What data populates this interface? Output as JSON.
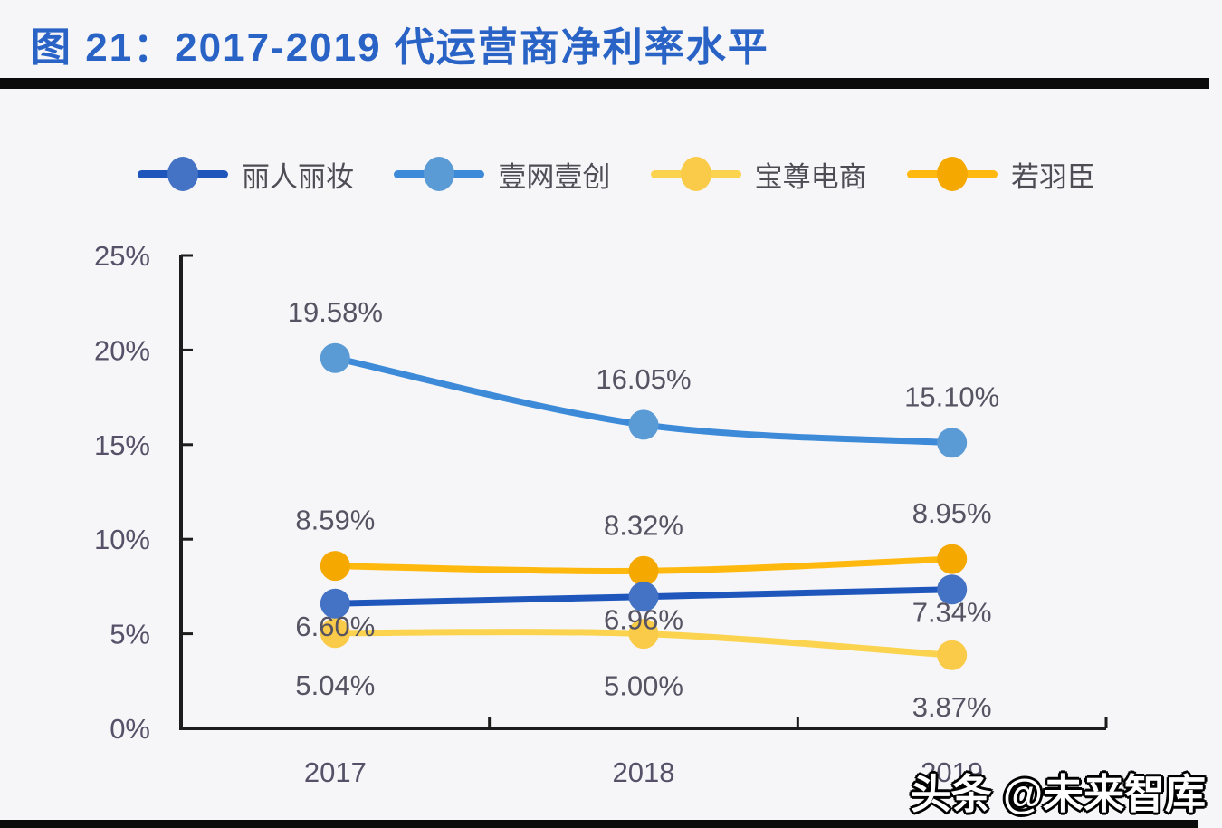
{
  "header": {
    "title": "图 21：2017-2019 代运营商净利率水平",
    "title_color": "#2A63C6",
    "rule_color": "#0B0B0B"
  },
  "watermark": {
    "text": "头条 @未来智库"
  },
  "page": {
    "background": "#F6F6F8"
  },
  "chart_data": {
    "type": "line",
    "title": "图 21：2017-2019 代运营商净利率水平",
    "categories": [
      "2017",
      "2018",
      "2019"
    ],
    "series": [
      {
        "name": "丽人丽妆",
        "values": [
          6.6,
          6.96,
          7.34
        ],
        "labels": [
          "6.60%",
          "6.96%",
          "7.34%"
        ],
        "line_color": "#1F56BB",
        "marker_color": "#4472C4",
        "label_side": "below",
        "label_offset": 25
      },
      {
        "name": "壹网壹创",
        "values": [
          19.58,
          16.05,
          15.1
        ],
        "labels": [
          "19.58%",
          "16.05%",
          "15.10%"
        ],
        "line_color": "#3D8BD8",
        "marker_color": "#5B9BD5",
        "label_side": "above",
        "label_offset": -51
      },
      {
        "name": "宝尊电商",
        "values": [
          5.04,
          5.0,
          3.87
        ],
        "labels": [
          "5.04%",
          "5.00%",
          "3.87%"
        ],
        "line_color": "#FBD34E",
        "marker_color": "#F9CB48",
        "label_side": "below",
        "label_offset": 57
      },
      {
        "name": "若羽臣",
        "values": [
          8.59,
          8.32,
          8.95
        ],
        "labels": [
          "8.59%",
          "8.32%",
          "8.95%"
        ],
        "line_color": "#FFB90E",
        "marker_color": "#F5A800",
        "label_side": "above",
        "label_offset": -51
      }
    ],
    "draw_order": [
      2,
      3,
      0,
      1
    ],
    "y_ticks": [
      {
        "value": 0,
        "label": "0%"
      },
      {
        "value": 5,
        "label": "5%"
      },
      {
        "value": 10,
        "label": "10%"
      },
      {
        "value": 15,
        "label": "15%"
      },
      {
        "value": 20,
        "label": "20%"
      },
      {
        "value": 25,
        "label": "25%"
      }
    ],
    "ylim": [
      0,
      25
    ],
    "xlabel": "",
    "ylabel": "",
    "grid": false,
    "legend_position": "top",
    "axis_color": "#1C1C1C",
    "tick_color": "#565168",
    "label_color": "#565362",
    "legend_text_color": "#4E4C55"
  }
}
